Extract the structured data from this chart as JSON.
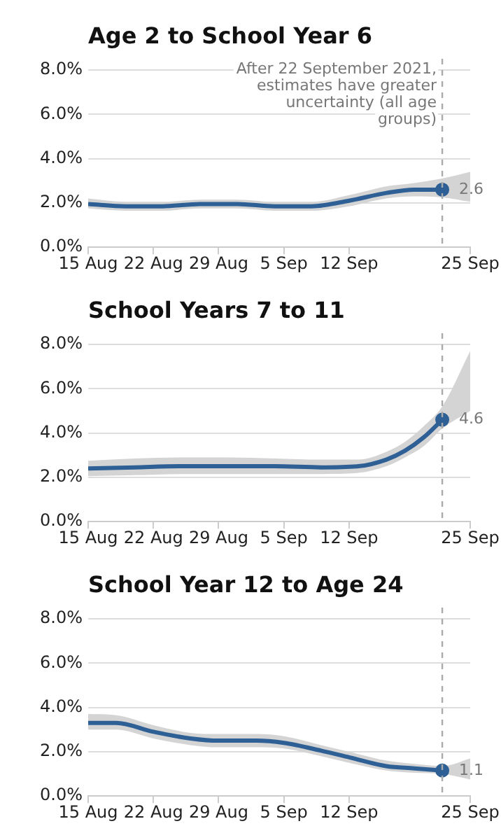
{
  "chart_data": [
    {
      "type": "line",
      "title": "Age 2 to School Year 6",
      "xlim": [
        "2021-08-15",
        "2021-09-25"
      ],
      "xticks": [
        {
          "value": "2021-08-15",
          "label": "15 Aug"
        },
        {
          "value": "2021-08-22",
          "label": "22 Aug"
        },
        {
          "value": "2021-08-29",
          "label": "29 Aug"
        },
        {
          "value": "2021-09-05",
          "label": "5 Sep"
        },
        {
          "value": "2021-09-12",
          "label": "12 Sep"
        },
        {
          "value": "2021-09-25",
          "label": "25 Sep"
        }
      ],
      "ylim": [
        0,
        8
      ],
      "yticks": [
        {
          "value": 0,
          "label": "0.0%"
        },
        {
          "value": 2,
          "label": "2.0%"
        },
        {
          "value": 4,
          "label": "4.0%"
        },
        {
          "value": 6,
          "label": "6.0%"
        },
        {
          "value": 8,
          "label": "8.0%"
        }
      ],
      "grid": "y",
      "legend": false,
      "series": [
        {
          "color": "#2e5f95",
          "x": [
            "2021-08-15",
            "2021-08-19",
            "2021-08-23",
            "2021-08-27",
            "2021-08-31",
            "2021-09-04",
            "2021-09-08",
            "2021-09-12",
            "2021-09-16",
            "2021-09-19",
            "2021-09-22",
            "2021-09-25"
          ],
          "values": [
            1.95,
            1.85,
            1.85,
            1.95,
            1.95,
            1.85,
            1.85,
            2.1,
            2.45,
            2.6,
            2.6,
            null
          ],
          "lower": [
            1.75,
            1.65,
            1.65,
            1.75,
            1.75,
            1.65,
            1.65,
            1.85,
            2.2,
            2.3,
            2.25,
            2.05
          ],
          "upper": [
            2.2,
            2.05,
            2.05,
            2.15,
            2.15,
            2.05,
            2.05,
            2.35,
            2.75,
            2.9,
            3.1,
            3.4
          ],
          "value_labels": [
            null,
            null,
            null,
            null,
            null,
            null,
            null,
            null,
            null,
            null,
            "2.6",
            null
          ]
        }
      ],
      "ref_lines": [
        {
          "axis": "x",
          "value": "2021-09-22",
          "label": "After 22 September 2021, estimates have greater uncertainty (all age groups)",
          "color": "#aaaaaa",
          "line_style": "dashed"
        }
      ]
    },
    {
      "type": "line",
      "title": "School Years 7 to 11",
      "xlim": [
        "2021-08-15",
        "2021-09-25"
      ],
      "xticks": [
        {
          "value": "2021-08-15",
          "label": "15 Aug"
        },
        {
          "value": "2021-08-22",
          "label": "22 Aug"
        },
        {
          "value": "2021-08-29",
          "label": "29 Aug"
        },
        {
          "value": "2021-09-05",
          "label": "5 Sep"
        },
        {
          "value": "2021-09-12",
          "label": "12 Sep"
        },
        {
          "value": "2021-09-25",
          "label": "25 Sep"
        }
      ],
      "ylim": [
        0,
        8
      ],
      "yticks": [
        {
          "value": 0,
          "label": "0.0%"
        },
        {
          "value": 2,
          "label": "2.0%"
        },
        {
          "value": 4,
          "label": "4.0%"
        },
        {
          "value": 6,
          "label": "6.0%"
        },
        {
          "value": 8,
          "label": "8.0%"
        }
      ],
      "grid": "y",
      "legend": false,
      "series": [
        {
          "color": "#2e5f95",
          "x": [
            "2021-08-15",
            "2021-08-20",
            "2021-08-25",
            "2021-08-30",
            "2021-09-04",
            "2021-09-09",
            "2021-09-13",
            "2021-09-16",
            "2021-09-18",
            "2021-09-20",
            "2021-09-22",
            "2021-09-25"
          ],
          "values": [
            2.4,
            2.45,
            2.5,
            2.5,
            2.5,
            2.45,
            2.5,
            2.8,
            3.2,
            3.8,
            4.6,
            null
          ],
          "lower": [
            2.05,
            2.1,
            2.15,
            2.15,
            2.15,
            2.15,
            2.2,
            2.5,
            2.9,
            3.4,
            4.2,
            5.0
          ],
          "upper": [
            2.75,
            2.85,
            2.9,
            2.9,
            2.85,
            2.8,
            2.8,
            3.15,
            3.6,
            4.3,
            5.2,
            7.7
          ],
          "value_labels": [
            null,
            null,
            null,
            null,
            null,
            null,
            null,
            null,
            null,
            null,
            "4.6",
            null
          ]
        }
      ],
      "ref_lines": [
        {
          "axis": "x",
          "value": "2021-09-22",
          "color": "#aaaaaa",
          "line_style": "dashed"
        }
      ]
    },
    {
      "type": "line",
      "title": "School Year 12 to Age 24",
      "xlim": [
        "2021-08-15",
        "2021-09-25"
      ],
      "xticks": [
        {
          "value": "2021-08-15",
          "label": "15 Aug"
        },
        {
          "value": "2021-08-22",
          "label": "22 Aug"
        },
        {
          "value": "2021-08-29",
          "label": "29 Aug"
        },
        {
          "value": "2021-09-05",
          "label": "5 Sep"
        },
        {
          "value": "2021-09-12",
          "label": "12 Sep"
        },
        {
          "value": "2021-09-25",
          "label": "25 Sep"
        }
      ],
      "ylim": [
        0,
        8
      ],
      "yticks": [
        {
          "value": 0,
          "label": "0.0%"
        },
        {
          "value": 2,
          "label": "2.0%"
        },
        {
          "value": 4,
          "label": "4.0%"
        },
        {
          "value": 6,
          "label": "6.0%"
        },
        {
          "value": 8,
          "label": "8.0%"
        }
      ],
      "grid": "y",
      "legend": false,
      "series": [
        {
          "color": "#2e5f95",
          "x": [
            "2021-08-15",
            "2021-08-18",
            "2021-08-22",
            "2021-08-26",
            "2021-08-29",
            "2021-09-02",
            "2021-09-05",
            "2021-09-09",
            "2021-09-12",
            "2021-09-16",
            "2021-09-19",
            "2021-09-22",
            "2021-09-25"
          ],
          "values": [
            3.3,
            3.3,
            2.9,
            2.6,
            2.5,
            2.5,
            2.4,
            2.05,
            1.75,
            1.35,
            1.25,
            1.15,
            null
          ],
          "lower": [
            3.0,
            3.0,
            2.6,
            2.3,
            2.2,
            2.2,
            2.15,
            1.8,
            1.5,
            1.15,
            1.05,
            1.0,
            0.75
          ],
          "upper": [
            3.7,
            3.65,
            3.2,
            2.85,
            2.8,
            2.8,
            2.7,
            2.3,
            2.0,
            1.6,
            1.45,
            1.35,
            1.7
          ],
          "value_labels": [
            null,
            null,
            null,
            null,
            null,
            null,
            null,
            null,
            null,
            null,
            null,
            "1.1",
            null
          ]
        }
      ],
      "ref_lines": [
        {
          "axis": "x",
          "value": "2021-09-22",
          "color": "#aaaaaa",
          "line_style": "dashed"
        }
      ]
    }
  ]
}
